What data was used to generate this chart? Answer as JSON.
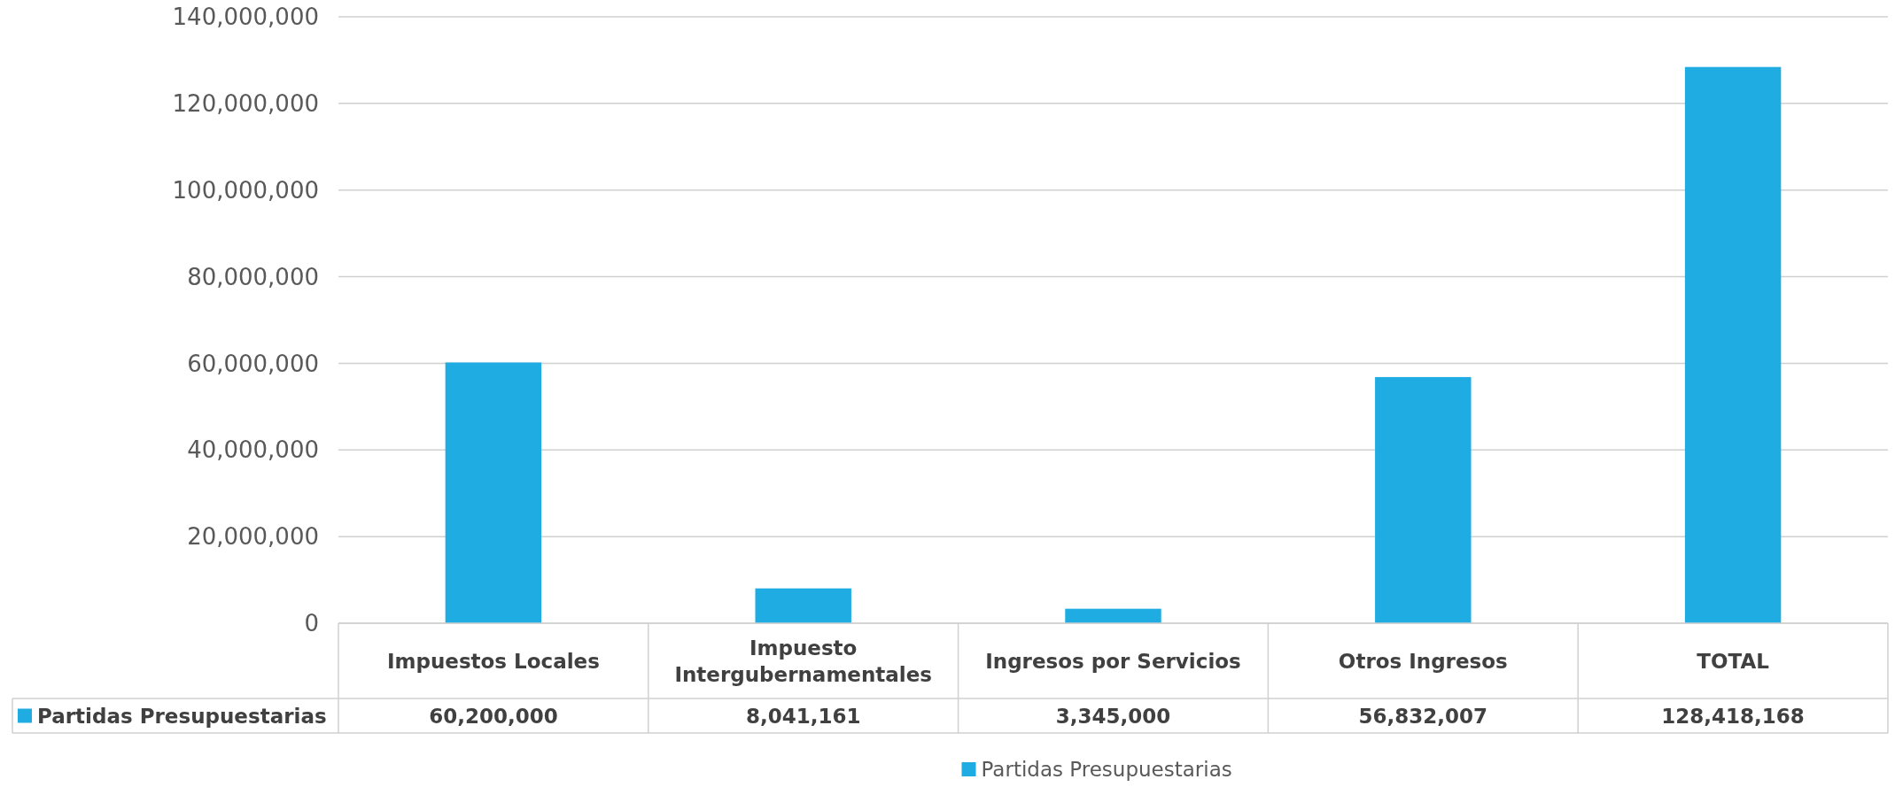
{
  "chart_data": {
    "type": "bar",
    "categories": [
      "Impuestos Locales",
      "Impuesto Intergubernamentales",
      "Ingresos por Servicios",
      "Otros Ingresos",
      "TOTAL"
    ],
    "series": [
      {
        "name": "Partidas Presupuestarias",
        "color": "#1eace3",
        "values": [
          60200000,
          8041161,
          3345000,
          56832007,
          128418168
        ],
        "value_labels": [
          "60,200,000",
          "8,041,161",
          "3,345,000",
          "56,832,007",
          "128,418,168"
        ]
      }
    ],
    "ylim": [
      0,
      140000000
    ],
    "yticks": [
      0,
      {
        "value": 20000000,
        "label": "20,000,000"
      },
      {
        "value": 40000000,
        "label": "40,000,000"
      },
      {
        "value": 60000000,
        "label": "60,000,000"
      },
      {
        "value": 80000000,
        "label": "80,000,000"
      },
      {
        "value": 100000000,
        "label": "100,000,000"
      },
      {
        "value": 120000000,
        "label": "120,000,000"
      },
      {
        "value": 140000000,
        "label": "140,000,000"
      }
    ],
    "grid": "y",
    "legend": "bottom"
  }
}
